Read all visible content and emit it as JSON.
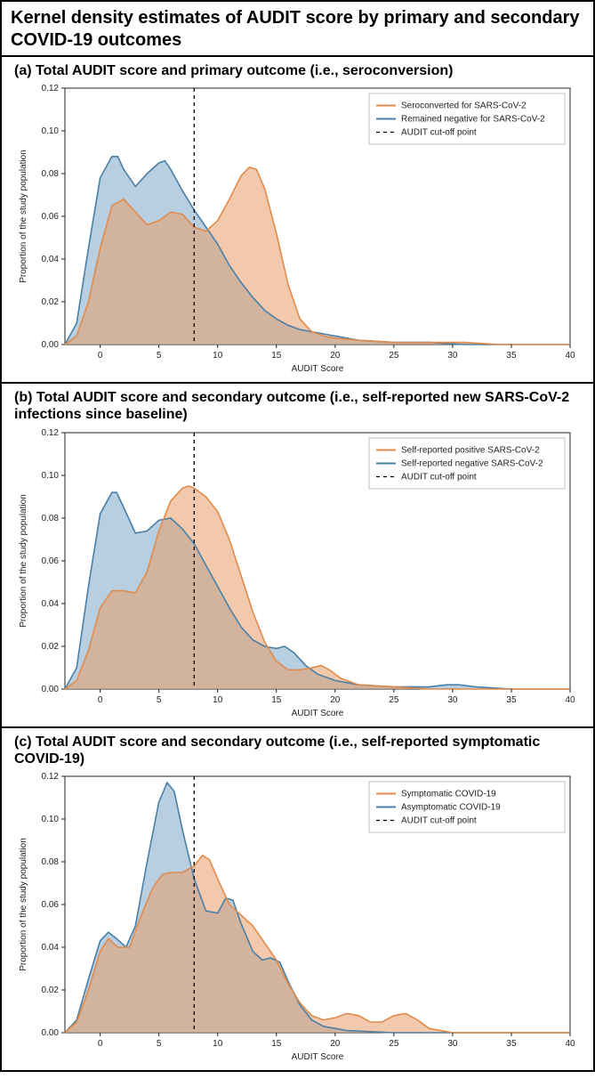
{
  "main_title": "Kernel density estimates of AUDIT score by primary and secondary COVID-19 outcomes",
  "title_fontsize": 20,
  "panel_title_fontsize": 16,
  "colors": {
    "series_a": "#e08b4b",
    "series_a_fill": "rgba(232,156,103,0.55)",
    "series_b": "#4a7fa6",
    "series_b_fill": "rgba(123,168,200,0.55)",
    "cutoff": "#000000",
    "axis": "#222222",
    "legend_border": "#bfbfbf",
    "background": "#ffffff"
  },
  "chart_common": {
    "x_min": -3,
    "x_max": 40,
    "y_min": 0,
    "y_max": 0.12,
    "x_ticks": [
      0,
      5,
      10,
      15,
      20,
      25,
      30,
      35,
      40
    ],
    "y_ticks": [
      0.0,
      0.02,
      0.04,
      0.06,
      0.08,
      0.1,
      0.12
    ],
    "x_label": "AUDIT Score",
    "y_label": "Proportion of the study population",
    "cutoff_x": 8,
    "label_fontsize": 10,
    "tick_fontsize": 10,
    "line_width": 1.6,
    "legend_dash": [
      4,
      4
    ]
  },
  "panels": [
    {
      "id": "a",
      "title": "(a) Total AUDIT score and primary outcome (i.e., seroconversion)",
      "legend": {
        "items": [
          {
            "swatch": "line_a",
            "label": "Seroconverted for SARS-CoV-2"
          },
          {
            "swatch": "line_b",
            "label": "Remained negative for SARS-CoV-2"
          },
          {
            "swatch": "dash",
            "label": "AUDIT cut-off point"
          }
        ]
      },
      "series_a": [
        [
          -3,
          0.0
        ],
        [
          -2,
          0.004
        ],
        [
          -1,
          0.02
        ],
        [
          0,
          0.045
        ],
        [
          1,
          0.065
        ],
        [
          2,
          0.068
        ],
        [
          3,
          0.062
        ],
        [
          4,
          0.056
        ],
        [
          5,
          0.058
        ],
        [
          6,
          0.062
        ],
        [
          7,
          0.061
        ],
        [
          8,
          0.055
        ],
        [
          9,
          0.053
        ],
        [
          10,
          0.058
        ],
        [
          11,
          0.068
        ],
        [
          12,
          0.079
        ],
        [
          12.7,
          0.083
        ],
        [
          13.3,
          0.082
        ],
        [
          14,
          0.073
        ],
        [
          15,
          0.052
        ],
        [
          16,
          0.028
        ],
        [
          17,
          0.012
        ],
        [
          18,
          0.006
        ],
        [
          19,
          0.004
        ],
        [
          20,
          0.003
        ],
        [
          22,
          0.002
        ],
        [
          25,
          0.001
        ],
        [
          28,
          0.001
        ],
        [
          31,
          0.001
        ],
        [
          34,
          0.0
        ],
        [
          38,
          0.0
        ],
        [
          40,
          0.0
        ]
      ],
      "series_b": [
        [
          -3,
          0.0
        ],
        [
          -2,
          0.01
        ],
        [
          -1,
          0.045
        ],
        [
          0,
          0.078
        ],
        [
          1,
          0.088
        ],
        [
          1.5,
          0.088
        ],
        [
          2,
          0.082
        ],
        [
          3,
          0.074
        ],
        [
          4,
          0.08
        ],
        [
          5,
          0.085
        ],
        [
          5.5,
          0.086
        ],
        [
          6,
          0.082
        ],
        [
          7,
          0.072
        ],
        [
          8,
          0.063
        ],
        [
          9,
          0.055
        ],
        [
          10,
          0.047
        ],
        [
          11,
          0.037
        ],
        [
          12,
          0.029
        ],
        [
          13,
          0.022
        ],
        [
          14,
          0.016
        ],
        [
          15,
          0.012
        ],
        [
          16,
          0.009
        ],
        [
          17,
          0.007
        ],
        [
          18,
          0.006
        ],
        [
          19,
          0.005
        ],
        [
          20,
          0.004
        ],
        [
          22,
          0.002
        ],
        [
          25,
          0.001
        ],
        [
          28,
          0.001
        ],
        [
          31,
          0.0
        ],
        [
          35,
          0.0
        ],
        [
          40,
          0.0
        ]
      ]
    },
    {
      "id": "b",
      "title": "(b) Total AUDIT score and secondary outcome (i.e., self-reported new SARS-CoV-2 infections since baseline)",
      "legend": {
        "items": [
          {
            "swatch": "line_a",
            "label": "Self-reported positive SARS-CoV-2"
          },
          {
            "swatch": "line_b",
            "label": "Self-reported negative SARS-CoV-2"
          },
          {
            "swatch": "dash",
            "label": "AUDIT cut-off point"
          }
        ]
      },
      "series_a": [
        [
          -3,
          0.0
        ],
        [
          -2,
          0.004
        ],
        [
          -1,
          0.018
        ],
        [
          0,
          0.038
        ],
        [
          1,
          0.046
        ],
        [
          2,
          0.046
        ],
        [
          3,
          0.045
        ],
        [
          4,
          0.055
        ],
        [
          5,
          0.074
        ],
        [
          6,
          0.088
        ],
        [
          7,
          0.094
        ],
        [
          7.5,
          0.095
        ],
        [
          8,
          0.094
        ],
        [
          9,
          0.09
        ],
        [
          10,
          0.083
        ],
        [
          11,
          0.07
        ],
        [
          12,
          0.053
        ],
        [
          13,
          0.036
        ],
        [
          14,
          0.022
        ],
        [
          15,
          0.013
        ],
        [
          16,
          0.009
        ],
        [
          17,
          0.009
        ],
        [
          18,
          0.01
        ],
        [
          18.8,
          0.011
        ],
        [
          19.5,
          0.009
        ],
        [
          20.5,
          0.005
        ],
        [
          22,
          0.002
        ],
        [
          25,
          0.001
        ],
        [
          28,
          0.0
        ],
        [
          32,
          0.0
        ],
        [
          40,
          0.0
        ]
      ],
      "series_b": [
        [
          -3,
          0.0
        ],
        [
          -2,
          0.01
        ],
        [
          -1,
          0.048
        ],
        [
          0,
          0.082
        ],
        [
          1,
          0.092
        ],
        [
          1.4,
          0.092
        ],
        [
          2,
          0.085
        ],
        [
          3,
          0.073
        ],
        [
          4,
          0.074
        ],
        [
          5,
          0.079
        ],
        [
          6,
          0.08
        ],
        [
          7,
          0.075
        ],
        [
          8,
          0.068
        ],
        [
          9,
          0.058
        ],
        [
          10,
          0.048
        ],
        [
          11,
          0.038
        ],
        [
          12,
          0.029
        ],
        [
          13,
          0.023
        ],
        [
          14,
          0.02
        ],
        [
          15,
          0.019
        ],
        [
          15.7,
          0.02
        ],
        [
          16.5,
          0.017
        ],
        [
          17.5,
          0.011
        ],
        [
          18.5,
          0.007
        ],
        [
          20,
          0.004
        ],
        [
          22,
          0.002
        ],
        [
          25,
          0.001
        ],
        [
          28,
          0.001
        ],
        [
          29.5,
          0.002
        ],
        [
          30.5,
          0.002
        ],
        [
          32,
          0.001
        ],
        [
          35,
          0.0
        ],
        [
          40,
          0.0
        ]
      ]
    },
    {
      "id": "c",
      "title": "(c) Total AUDIT score and secondary outcome (i.e., self-reported symptomatic COVID-19)",
      "legend": {
        "items": [
          {
            "swatch": "line_a",
            "label": "Symptomatic COVID-19"
          },
          {
            "swatch": "line_b",
            "label": "Asymptomatic COVID-19"
          },
          {
            "swatch": "dash",
            "label": "AUDIT cut-off point"
          }
        ]
      },
      "series_a": [
        [
          -3,
          0.0
        ],
        [
          -2,
          0.005
        ],
        [
          -1,
          0.02
        ],
        [
          0,
          0.038
        ],
        [
          0.7,
          0.044
        ],
        [
          1.5,
          0.04
        ],
        [
          2.5,
          0.04
        ],
        [
          3.5,
          0.055
        ],
        [
          4.5,
          0.068
        ],
        [
          5.3,
          0.074
        ],
        [
          6,
          0.075
        ],
        [
          7,
          0.075
        ],
        [
          8,
          0.078
        ],
        [
          8.7,
          0.083
        ],
        [
          9.3,
          0.081
        ],
        [
          10,
          0.072
        ],
        [
          11,
          0.06
        ],
        [
          12,
          0.055
        ],
        [
          13,
          0.05
        ],
        [
          14,
          0.042
        ],
        [
          15,
          0.034
        ],
        [
          16,
          0.023
        ],
        [
          17,
          0.014
        ],
        [
          18,
          0.008
        ],
        [
          19,
          0.006
        ],
        [
          20,
          0.007
        ],
        [
          21,
          0.009
        ],
        [
          22,
          0.008
        ],
        [
          23,
          0.005
        ],
        [
          24,
          0.005
        ],
        [
          25,
          0.008
        ],
        [
          26,
          0.009
        ],
        [
          27,
          0.006
        ],
        [
          28,
          0.002
        ],
        [
          30,
          0.0
        ],
        [
          40,
          0.0
        ]
      ],
      "series_b": [
        [
          -3,
          0.0
        ],
        [
          -2,
          0.006
        ],
        [
          -1,
          0.025
        ],
        [
          0,
          0.043
        ],
        [
          0.7,
          0.047
        ],
        [
          1.4,
          0.044
        ],
        [
          2.2,
          0.04
        ],
        [
          3,
          0.05
        ],
        [
          4,
          0.08
        ],
        [
          5,
          0.108
        ],
        [
          5.7,
          0.117
        ],
        [
          6.3,
          0.113
        ],
        [
          7,
          0.095
        ],
        [
          8,
          0.072
        ],
        [
          9,
          0.057
        ],
        [
          10,
          0.056
        ],
        [
          10.7,
          0.063
        ],
        [
          11.3,
          0.062
        ],
        [
          12,
          0.051
        ],
        [
          13,
          0.038
        ],
        [
          13.8,
          0.034
        ],
        [
          14.5,
          0.035
        ],
        [
          15.3,
          0.033
        ],
        [
          16,
          0.024
        ],
        [
          17,
          0.013
        ],
        [
          18,
          0.006
        ],
        [
          19,
          0.003
        ],
        [
          21,
          0.001
        ],
        [
          25,
          0.0
        ],
        [
          30,
          0.0
        ],
        [
          40,
          0.0
        ]
      ]
    }
  ]
}
